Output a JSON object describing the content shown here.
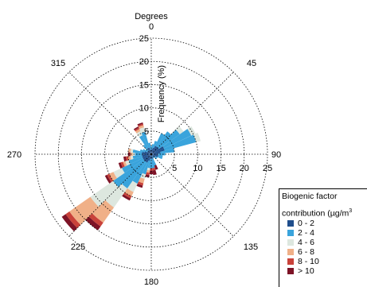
{
  "chart_data": {
    "type": "polar-bar",
    "title": "Degrees",
    "radial_axis_label": "Frequency (%)",
    "direction_ticks": [
      {
        "deg": 0,
        "label": "0"
      },
      {
        "deg": 45,
        "label": "45"
      },
      {
        "deg": 90,
        "label": "90"
      },
      {
        "deg": 135,
        "label": "135"
      },
      {
        "deg": 180,
        "label": "180"
      },
      {
        "deg": 225,
        "label": "225"
      },
      {
        "deg": 270,
        "label": "270"
      },
      {
        "deg": 315,
        "label": "315"
      }
    ],
    "radial_ticks_vertical": [
      "5",
      "10",
      "15",
      "20",
      "25"
    ],
    "radial_ticks_horizontal": [
      "5",
      "10",
      "15",
      "20",
      "25"
    ],
    "rmax": 25,
    "legend": {
      "title_line1": "Biogenic factor",
      "title_line2": "contribution (µg/m",
      "title_sup": "3",
      "placement": "bottom-right",
      "entries": [
        {
          "label": "0 - 2",
          "color": "#1f4e8c"
        },
        {
          "label": "2 - 4",
          "color": "#3aa4dc"
        },
        {
          "label": "4 - 6",
          "color": "#dde7df"
        },
        {
          "label": "6 - 8",
          "color": "#f0b088"
        },
        {
          "label": "8 - 10",
          "color": "#c9423a"
        },
        {
          "label": "> 10",
          "color": "#7d1326"
        }
      ]
    },
    "sectors": [
      {
        "deg": 0,
        "stack": [
          1.0,
          0.8
        ]
      },
      {
        "deg": 10,
        "stack": [
          1.2,
          1.0
        ]
      },
      {
        "deg": 20,
        "stack": [
          1.5,
          1.5
        ]
      },
      {
        "deg": 30,
        "stack": [
          2.0,
          3.0
        ]
      },
      {
        "deg": 40,
        "stack": [
          2.0,
          4.0
        ]
      },
      {
        "deg": 50,
        "stack": [
          2.0,
          5.5,
          1.0
        ]
      },
      {
        "deg": 60,
        "stack": [
          3.0,
          6.5,
          1.0
        ]
      },
      {
        "deg": 70,
        "stack": [
          3.0,
          7.0,
          1.0
        ]
      },
      {
        "deg": 80,
        "stack": [
          2.0,
          3.0
        ]
      },
      {
        "deg": 90,
        "stack": [
          1.5,
          1.5
        ]
      },
      {
        "deg": 100,
        "stack": [
          1.5,
          1.0
        ]
      },
      {
        "deg": 110,
        "stack": [
          1.5,
          1.0
        ]
      },
      {
        "deg": 120,
        "stack": [
          1.0,
          0.5
        ]
      },
      {
        "deg": 130,
        "stack": [
          1.0,
          0.5
        ]
      },
      {
        "deg": 140,
        "stack": [
          0.5,
          0.5
        ]
      },
      {
        "deg": 150,
        "stack": [
          0.5,
          0.5
        ]
      },
      {
        "deg": 160,
        "stack": [
          1.0,
          1.5,
          0,
          0,
          0,
          1.0
        ]
      },
      {
        "deg": 170,
        "stack": [
          1.0,
          2.0,
          0,
          0,
          0.5,
          1.0
        ]
      },
      {
        "deg": 180,
        "stack": [
          1.0,
          2.0,
          0,
          0,
          0.5,
          0.8
        ]
      },
      {
        "deg": 190,
        "stack": [
          1.0,
          2.0,
          0.5,
          0.5,
          0.5,
          0.5
        ]
      },
      {
        "deg": 200,
        "stack": [
          1.5,
          3.0,
          1.0,
          1.0,
          0.5,
          0.5
        ]
      },
      {
        "deg": 210,
        "stack": [
          2.0,
          5.0,
          2.0,
          1.0,
          0.5,
          0.5
        ]
      },
      {
        "deg": 220,
        "stack": [
          2.0,
          7.0,
          5.0,
          4.0,
          1.0,
          1.0
        ]
      },
      {
        "deg": 230,
        "stack": [
          2.0,
          8.0,
          6.0,
          5.5,
          1.0,
          1.0
        ]
      },
      {
        "deg": 240,
        "stack": [
          2.0,
          5.0,
          2.0,
          1.0,
          0.5,
          0.5
        ]
      },
      {
        "deg": 250,
        "stack": [
          2.0,
          3.0,
          0.8,
          0.5,
          0.5,
          0.5
        ]
      },
      {
        "deg": 260,
        "stack": [
          2.0,
          2.0,
          0.5,
          0.5,
          0.5,
          0.5
        ]
      },
      {
        "deg": 270,
        "stack": [
          2.0,
          1.5,
          0.5,
          0.5,
          0,
          0.5
        ]
      },
      {
        "deg": 280,
        "stack": [
          2.0,
          2.0,
          0.5,
          0.5
        ]
      },
      {
        "deg": 290,
        "stack": [
          1.5,
          1.0
        ]
      },
      {
        "deg": 300,
        "stack": [
          1.0,
          1.0
        ]
      },
      {
        "deg": 310,
        "stack": [
          1.0,
          0.5
        ]
      },
      {
        "deg": 320,
        "stack": [
          1.0,
          1.5
        ]
      },
      {
        "deg": 330,
        "stack": [
          1.5,
          3.0,
          1.0,
          0.5,
          0.3,
          0.3
        ]
      },
      {
        "deg": 340,
        "stack": [
          1.5,
          3.5,
          1.0,
          0.5,
          0.3,
          0.3
        ]
      },
      {
        "deg": 350,
        "stack": [
          1.0,
          1.5
        ]
      }
    ]
  }
}
